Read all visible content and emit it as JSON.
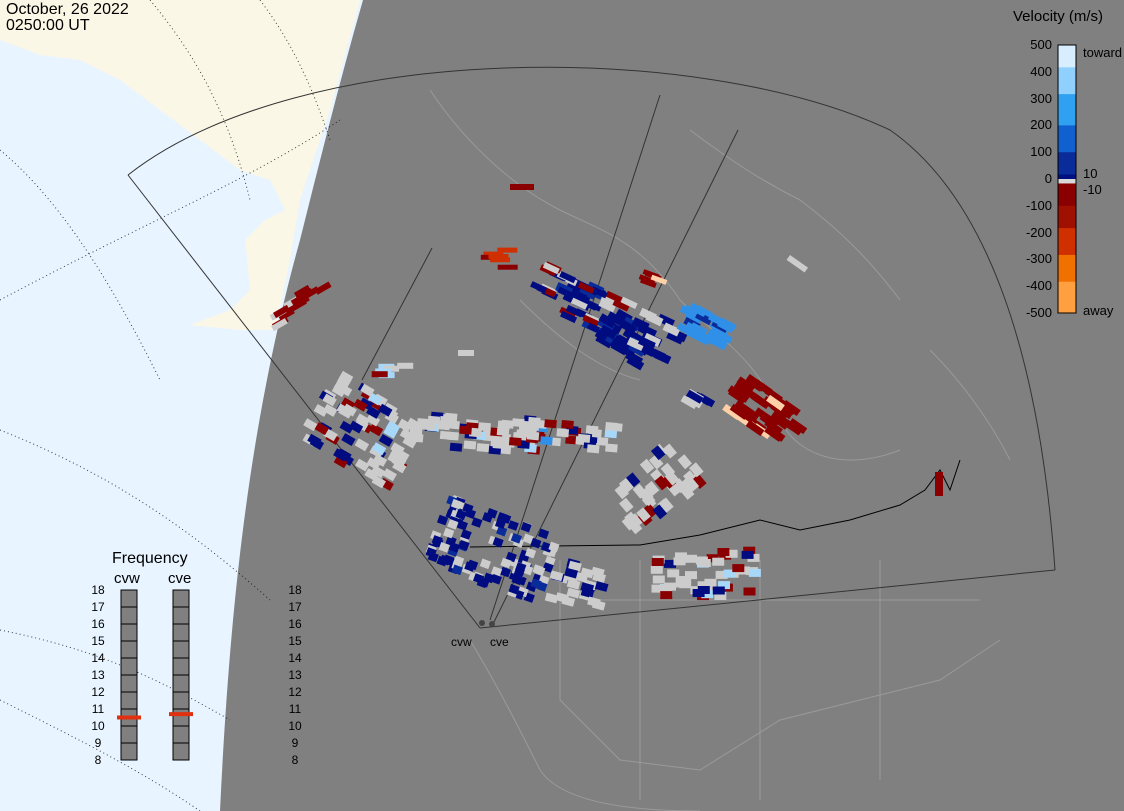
{
  "header": {
    "date": "October, 26 2022",
    "time": "0250:00 UT"
  },
  "colors": {
    "ocean": "#e8f4ff",
    "land": "#fbf7e6",
    "night": "#808080",
    "fov_line": "#333333",
    "low_velocity": "#cccccc"
  },
  "velocity_scale": {
    "title": "Velocity (m/s)",
    "ticks": [
      "500",
      "400",
      "300",
      "200",
      "100",
      "0",
      "-100",
      "-200",
      "-300",
      "-400",
      "-500"
    ],
    "near_zero": [
      "10",
      "-10"
    ],
    "end_labels": {
      "toward": "toward",
      "away": "away"
    }
  },
  "frequency": {
    "title": "Frequency",
    "radars": [
      {
        "name": "cvw",
        "value_mhz": 10.5
      },
      {
        "name": "cve",
        "value_mhz": 10.7
      }
    ],
    "ticks": [
      "18",
      "17",
      "16",
      "15",
      "14",
      "13",
      "12",
      "11",
      "10",
      "9",
      "8"
    ]
  },
  "radar_sites": [
    "cvw",
    "cve"
  ]
}
